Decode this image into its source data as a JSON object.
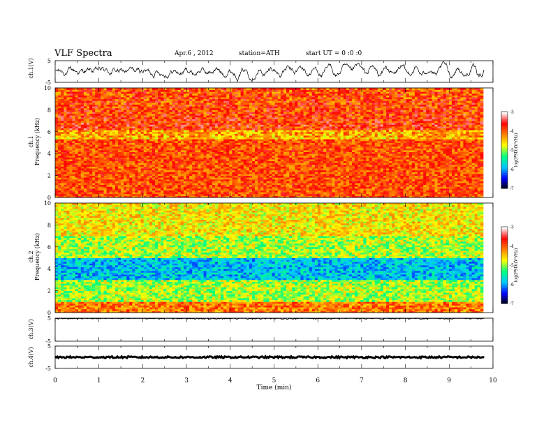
{
  "header": {
    "title": "VLF  Spectra",
    "date": "Apr.6  , 2012",
    "station": "station=ATH",
    "start": "start  UT  =   0  :0  :0"
  },
  "colors": {
    "colorbar_stops": [
      "#000000",
      "#0000ff",
      "#00c8ff",
      "#00ff80",
      "#ffff00",
      "#ff8000",
      "#ff0000",
      "#ffffff"
    ],
    "trace": "#000000"
  },
  "chart_data": [
    {
      "type": "line",
      "ylabel": "ch.1(V)",
      "ylim": [
        -5,
        5
      ],
      "yticks": [
        "5",
        "-5"
      ],
      "series": [
        {
          "values": "waveform, fluctuating roughly between -5 and +5 V"
        }
      ]
    },
    {
      "type": "heatmap",
      "ylabel": "ch.1\nFrequency (kHz)",
      "ylim": [
        0,
        10
      ],
      "yticks": [
        "0",
        "2",
        "4",
        "6",
        "8",
        "10"
      ],
      "colorbar": {
        "label": "log(PSD)(V²/Hz)",
        "range": [
          -7,
          -3
        ],
        "ticks": [
          "-3",
          "-4",
          "-5",
          "-6",
          "-7"
        ]
      }
    },
    {
      "type": "heatmap",
      "ylabel": "ch.2\nFrequency (kHz)",
      "ylim": [
        0,
        10
      ],
      "yticks": [
        "0",
        "2",
        "4",
        "6",
        "8",
        "10"
      ],
      "colorbar": {
        "label": "log(PSD)(V²/Hz)",
        "range": [
          -7,
          -3
        ],
        "ticks": [
          "-3",
          "-4",
          "-5",
          "-6",
          "-7"
        ]
      }
    },
    {
      "type": "line",
      "ylabel": "ch.3(V)",
      "ylim": [
        -5,
        5
      ],
      "yticks": [
        "5",
        "-5"
      ],
      "series": [
        {
          "values": "near-constant trace at about 5 V"
        }
      ]
    },
    {
      "type": "line",
      "ylabel": "ch.4(V)",
      "ylim": [
        -5,
        5
      ],
      "yticks": [
        "5",
        "-5"
      ],
      "series": [
        {
          "values": "near-constant trace at about 0 V"
        }
      ]
    }
  ],
  "xaxis": {
    "label": "Time  (min)",
    "range": [
      0,
      10
    ],
    "ticks": [
      "0",
      "1",
      "2",
      "3",
      "4",
      "5",
      "6",
      "7",
      "8",
      "9",
      "10"
    ]
  }
}
